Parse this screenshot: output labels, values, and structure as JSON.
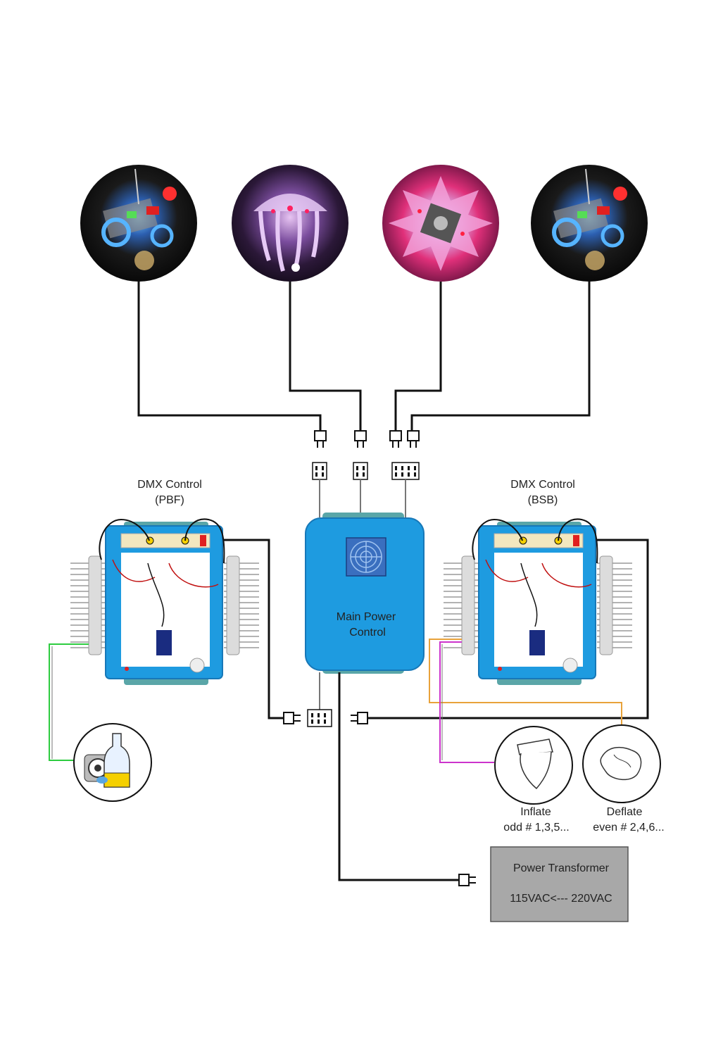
{
  "fixtures": [
    {
      "name": "fixture-1",
      "theme": "mechanical"
    },
    {
      "name": "fixture-2",
      "theme": "jellyfish"
    },
    {
      "name": "fixture-3",
      "theme": "star-flower"
    },
    {
      "name": "fixture-4",
      "theme": "mechanical"
    }
  ],
  "dmx_left": {
    "title": "DMX Control",
    "subtitle": "(PBF)"
  },
  "dmx_right": {
    "title": "DMX Control",
    "subtitle": "(BSB)"
  },
  "main_power": {
    "line1": "Main Power",
    "line2": "Control"
  },
  "inflate": {
    "title": "Inflate",
    "subtitle": "odd # 1,3,5..."
  },
  "deflate": {
    "title": "Deflate",
    "subtitle": "even # 2,4,6..."
  },
  "transformer": {
    "title": "Power Transformer",
    "subtitle": "115VAC<--- 220VAC"
  },
  "colors": {
    "box_blue": "#1e9be0",
    "box_border": "#1778b8",
    "cap_teal": "#5aa6a8",
    "wire": "#111111",
    "green_wire": "#2ecc40",
    "orange_wire": "#e8a23a",
    "magenta_wire": "#cc33cc",
    "transformer_fill": "#a8a8a8"
  }
}
